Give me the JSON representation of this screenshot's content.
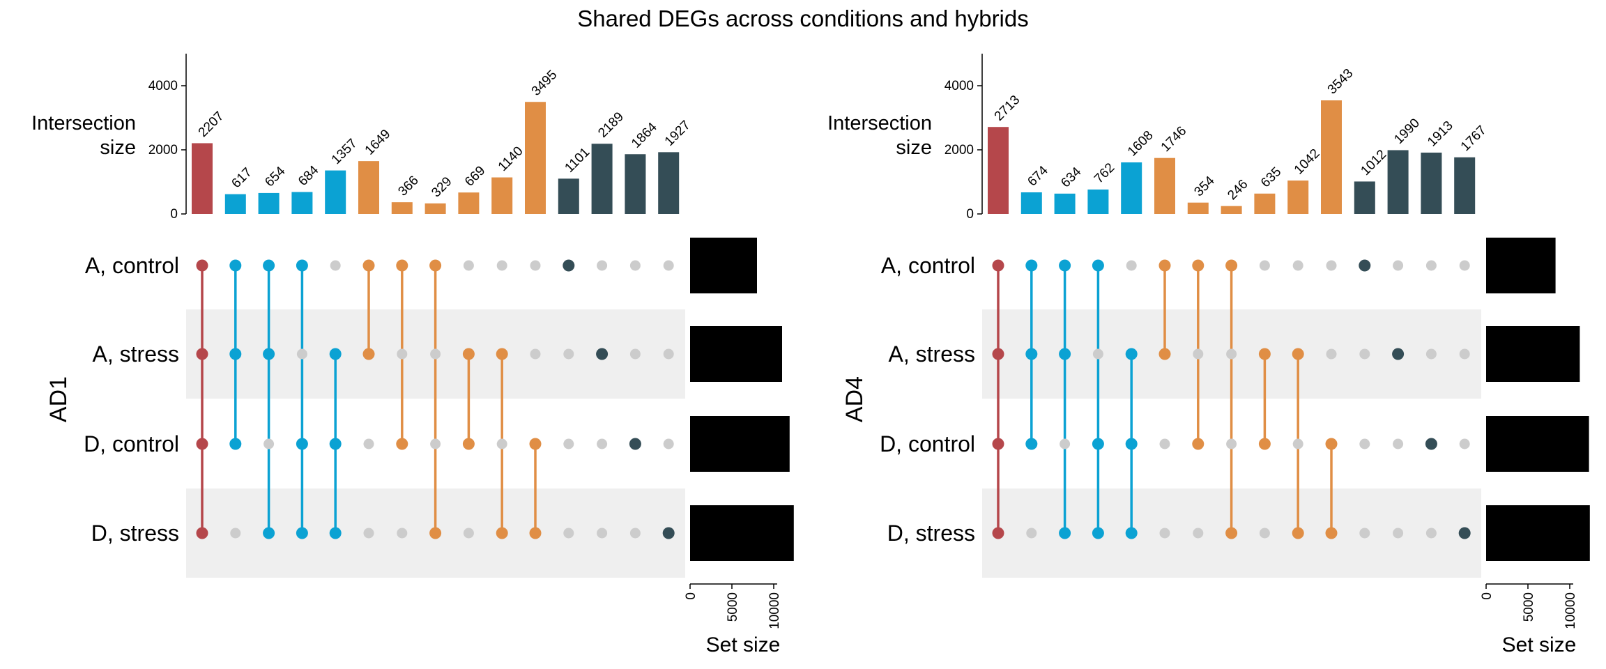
{
  "title": "Shared DEGs across conditions and hybrids",
  "colors": {
    "all": "#B5474B",
    "three": "#0BA2D3",
    "two": "#E08E45",
    "one": "#344D56",
    "inactive": "#CCCCCC",
    "band": "#EFEFEF",
    "setbar": "#000000"
  },
  "chart_data": [
    {
      "type": "upset",
      "panel_label": "AD1",
      "ylabel": "Intersection size",
      "xlabel": "Set size",
      "ylim": [
        0,
        5000
      ],
      "yticks": [
        0,
        2000,
        4000
      ],
      "setsize_ticks": [
        0,
        5000,
        10000
      ],
      "sets": [
        "A, control",
        "A, stress",
        "D, control",
        "D, stress"
      ],
      "set_sizes": [
        8000,
        11000,
        11900,
        12400
      ],
      "intersections": [
        {
          "sets": [
            0,
            1,
            2,
            3
          ],
          "size": 2207,
          "group": "all"
        },
        {
          "sets": [
            0,
            1,
            2
          ],
          "size": 617,
          "group": "three"
        },
        {
          "sets": [
            0,
            1,
            3
          ],
          "size": 654,
          "group": "three"
        },
        {
          "sets": [
            0,
            2,
            3
          ],
          "size": 684,
          "group": "three"
        },
        {
          "sets": [
            1,
            2,
            3
          ],
          "size": 1357,
          "group": "three"
        },
        {
          "sets": [
            0,
            1
          ],
          "size": 1649,
          "group": "two"
        },
        {
          "sets": [
            0,
            2
          ],
          "size": 366,
          "group": "two"
        },
        {
          "sets": [
            0,
            3
          ],
          "size": 329,
          "group": "two"
        },
        {
          "sets": [
            1,
            2
          ],
          "size": 669,
          "group": "two"
        },
        {
          "sets": [
            1,
            3
          ],
          "size": 1140,
          "group": "two"
        },
        {
          "sets": [
            2,
            3
          ],
          "size": 3495,
          "group": "two"
        },
        {
          "sets": [
            0
          ],
          "size": 1101,
          "group": "one"
        },
        {
          "sets": [
            1
          ],
          "size": 2189,
          "group": "one"
        },
        {
          "sets": [
            2
          ],
          "size": 1864,
          "group": "one"
        },
        {
          "sets": [
            3
          ],
          "size": 1927,
          "group": "one"
        }
      ]
    },
    {
      "type": "upset",
      "panel_label": "AD4",
      "ylabel": "Intersection size",
      "xlabel": "Set size",
      "ylim": [
        0,
        5000
      ],
      "yticks": [
        0,
        2000,
        4000
      ],
      "setsize_ticks": [
        0,
        5000,
        10000
      ],
      "sets": [
        "A, control",
        "A, stress",
        "D, control",
        "D, stress"
      ],
      "set_sizes": [
        8300,
        11200,
        12300,
        12400
      ],
      "intersections": [
        {
          "sets": [
            0,
            1,
            2,
            3
          ],
          "size": 2713,
          "group": "all"
        },
        {
          "sets": [
            0,
            1,
            2
          ],
          "size": 674,
          "group": "three"
        },
        {
          "sets": [
            0,
            1,
            3
          ],
          "size": 634,
          "group": "three"
        },
        {
          "sets": [
            0,
            2,
            3
          ],
          "size": 762,
          "group": "three"
        },
        {
          "sets": [
            1,
            2,
            3
          ],
          "size": 1608,
          "group": "three"
        },
        {
          "sets": [
            0,
            1
          ],
          "size": 1746,
          "group": "two"
        },
        {
          "sets": [
            0,
            2
          ],
          "size": 354,
          "group": "two"
        },
        {
          "sets": [
            0,
            3
          ],
          "size": 246,
          "group": "two"
        },
        {
          "sets": [
            1,
            2
          ],
          "size": 635,
          "group": "two"
        },
        {
          "sets": [
            1,
            3
          ],
          "size": 1042,
          "group": "two"
        },
        {
          "sets": [
            2,
            3
          ],
          "size": 3543,
          "group": "two"
        },
        {
          "sets": [
            0
          ],
          "size": 1012,
          "group": "one"
        },
        {
          "sets": [
            1
          ],
          "size": 1990,
          "group": "one"
        },
        {
          "sets": [
            2
          ],
          "size": 1913,
          "group": "one"
        },
        {
          "sets": [
            3
          ],
          "size": 1767,
          "group": "one"
        }
      ]
    }
  ]
}
